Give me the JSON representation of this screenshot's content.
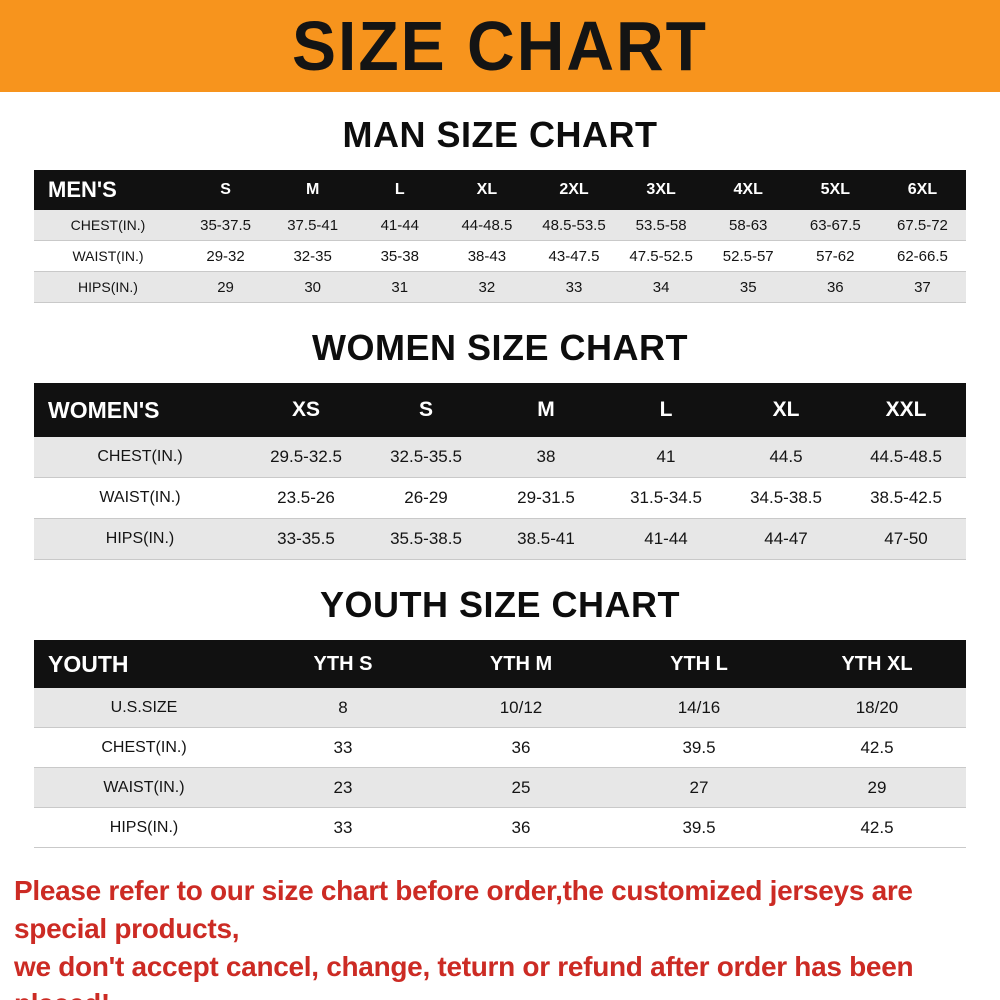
{
  "colors": {
    "banner_bg": "#f7941d",
    "table_header_bg": "#111111",
    "row_shade": "#e7e7e7",
    "footer_text": "#cc2b24"
  },
  "banner": {
    "title": "SIZE CHART"
  },
  "sections": [
    {
      "heading": "MAN SIZE CHART",
      "table": {
        "header": [
          "MEN'S",
          "S",
          "M",
          "L",
          "XL",
          "2XL",
          "3XL",
          "4XL",
          "5XL",
          "6XL"
        ],
        "rows": [
          [
            "CHEST(IN.)",
            "35-37.5",
            "37.5-41",
            "41-44",
            "44-48.5",
            "48.5-53.5",
            "53.5-58",
            "58-63",
            "63-67.5",
            "67.5-72"
          ],
          [
            "WAIST(IN.)",
            "29-32",
            "32-35",
            "35-38",
            "38-43",
            "43-47.5",
            "47.5-52.5",
            "52.5-57",
            "57-62",
            "62-66.5"
          ],
          [
            "HIPS(IN.)",
            "29",
            "30",
            "31",
            "32",
            "33",
            "34",
            "35",
            "36",
            "37"
          ]
        ]
      }
    },
    {
      "heading": "WOMEN SIZE CHART",
      "table": {
        "header": [
          "WOMEN'S",
          "XS",
          "S",
          "M",
          "L",
          "XL",
          "XXL"
        ],
        "rows": [
          [
            "CHEST(IN.)",
            "29.5-32.5",
            "32.5-35.5",
            "38",
            "41",
            "44.5",
            "44.5-48.5"
          ],
          [
            "WAIST(IN.)",
            "23.5-26",
            "26-29",
            "29-31.5",
            "31.5-34.5",
            "34.5-38.5",
            "38.5-42.5"
          ],
          [
            "HIPS(IN.)",
            "33-35.5",
            "35.5-38.5",
            "38.5-41",
            "41-44",
            "44-47",
            "47-50"
          ]
        ]
      }
    },
    {
      "heading": "YOUTH SIZE CHART",
      "table": {
        "header": [
          "YOUTH",
          "YTH S",
          "YTH M",
          "YTH L",
          "YTH XL"
        ],
        "rows": [
          [
            "U.S.SIZE",
            "8",
            "10/12",
            "14/16",
            "18/20"
          ],
          [
            "CHEST(IN.)",
            "33",
            "36",
            "39.5",
            "42.5"
          ],
          [
            "WAIST(IN.)",
            "23",
            "25",
            "27",
            "29"
          ],
          [
            "HIPS(IN.)",
            "33",
            "36",
            "39.5",
            "42.5"
          ]
        ]
      }
    }
  ],
  "footer": {
    "line1": "Please refer to our size chart before order,the customized jerseys are special products,",
    "line2": "we don't accept cancel, change, teturn or refund after order has been placed!"
  }
}
